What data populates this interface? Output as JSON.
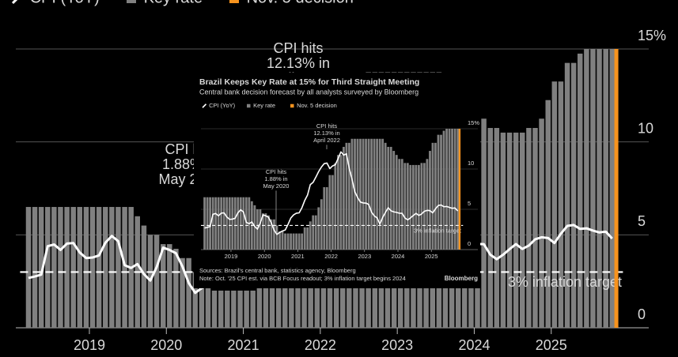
{
  "chart_data": {
    "type": "bar-line",
    "title": "Brazil Keeps Key Rate at 15% for Third Straight Meeting",
    "subtitle": "Central bank decision forecast by all analysts surveyed by Bloomberg",
    "x": [
      2018.167,
      2018.25,
      2018.333,
      2018.417,
      2018.5,
      2018.583,
      2018.667,
      2018.75,
      2018.833,
      2018.917,
      2019,
      2019.083,
      2019.167,
      2019.25,
      2019.333,
      2019.417,
      2019.5,
      2019.583,
      2019.667,
      2019.75,
      2019.833,
      2019.917,
      2020,
      2020.083,
      2020.167,
      2020.25,
      2020.333,
      2020.417,
      2020.5,
      2020.583,
      2020.667,
      2020.75,
      2020.833,
      2020.917,
      2021,
      2021.083,
      2021.167,
      2021.25,
      2021.333,
      2021.417,
      2021.5,
      2021.583,
      2021.667,
      2021.75,
      2021.833,
      2021.917,
      2022,
      2022.083,
      2022.167,
      2022.25,
      2022.333,
      2022.417,
      2022.5,
      2022.583,
      2022.667,
      2022.75,
      2022.833,
      2022.917,
      2023,
      2023.083,
      2023.167,
      2023.25,
      2023.333,
      2023.417,
      2023.5,
      2023.583,
      2023.667,
      2023.75,
      2023.833,
      2023.917,
      2024,
      2024.083,
      2024.167,
      2024.25,
      2024.333,
      2024.417,
      2024.5,
      2024.583,
      2024.667,
      2024.75,
      2024.833,
      2024.917,
      2025,
      2025.083,
      2025.167,
      2025.25,
      2025.333,
      2025.417,
      2025.5,
      2025.583,
      2025.667,
      2025.75
    ],
    "series": [
      {
        "name": "CPI (YoY)",
        "type": "line",
        "color": "#ffffff",
        "values": [
          2.68,
          2.76,
          2.86,
          4.39,
          4.48,
          4.19,
          4.53,
          4.56,
          4.05,
          3.75,
          3.78,
          3.89,
          4.58,
          4.94,
          4.66,
          3.37,
          3.22,
          3.43,
          2.89,
          2.54,
          3.27,
          4.31,
          4.19,
          4.01,
          3.3,
          2.4,
          1.88,
          2.13,
          2.31,
          2.44,
          3.14,
          3.92,
          4.31,
          4.52,
          4.56,
          5.2,
          6.1,
          6.76,
          8.06,
          8.35,
          8.99,
          9.68,
          10.25,
          10.67,
          10.74,
          10.06,
          10.38,
          10.54,
          11.3,
          12.13,
          11.73,
          11.89,
          10.07,
          8.73,
          7.17,
          6.47,
          5.9,
          5.79,
          5.77,
          5.6,
          4.65,
          4.18,
          3.94,
          3.16,
          3.99,
          4.61,
          5.19,
          4.82,
          4.68,
          4.62,
          4.51,
          4.5,
          3.93,
          3.69,
          3.93,
          4.23,
          4.5,
          4.24,
          4.42,
          4.76,
          4.87,
          4.83,
          4.56,
          5.06,
          5.48,
          5.53,
          5.32,
          5.35,
          5.23,
          5.13,
          5.17,
          4.8
        ]
      },
      {
        "name": "Key rate",
        "type": "bar",
        "color": "#808080",
        "values": [
          6.5,
          6.5,
          6.5,
          6.5,
          6.5,
          6.5,
          6.5,
          6.5,
          6.5,
          6.5,
          6.5,
          6.5,
          6.5,
          6.5,
          6.5,
          6.5,
          6.5,
          6,
          5.5,
          5,
          5,
          4.5,
          4.5,
          4.25,
          3.75,
          3.75,
          3,
          2.25,
          2.25,
          2,
          2,
          2,
          2,
          2,
          2,
          2,
          2.75,
          2.75,
          3.5,
          4.25,
          4.25,
          5.25,
          6.25,
          7.75,
          7.75,
          9.25,
          9.25,
          10.75,
          11.75,
          11.75,
          12.75,
          13.25,
          13.25,
          13.75,
          13.75,
          13.75,
          13.75,
          13.75,
          13.75,
          13.75,
          13.75,
          13.75,
          13.75,
          13.75,
          13.75,
          13.25,
          12.75,
          12.75,
          12.25,
          11.75,
          11.25,
          11.25,
          10.75,
          10.75,
          10.5,
          10.5,
          10.5,
          10.5,
          10.75,
          10.75,
          11.25,
          12.25,
          13.25,
          13.25,
          14.25,
          14.25,
          14.75,
          15,
          15,
          15,
          15,
          15
        ]
      },
      {
        "name": "Nov. 5 decision",
        "type": "vline",
        "color": "#f7931e",
        "x": 2025.846
      }
    ],
    "xlim": [
      2018.1,
      2025.95
    ],
    "xticks": [
      2019,
      2020,
      2021,
      2022,
      2023,
      2024,
      2025
    ],
    "ylim": [
      0,
      15
    ],
    "yticks": [
      0,
      5,
      10,
      {
        "value": 15,
        "label": "15%"
      }
    ],
    "target": {
      "value": 3,
      "label": "3% inflation target"
    },
    "annotations": [
      {
        "lines": [
          "CPI hits",
          "12.13% in",
          "April 2022"
        ]
      },
      {
        "lines": [
          "CPI hits",
          "1.88% in",
          "May 2020"
        ]
      }
    ],
    "source": "Sources: Brazil's central bank, statistics agency, Bloomberg",
    "note": "Note: Oct. '25 CPI est. via BCB Focus readout; 3% inflation target begins 2024",
    "credit": "Bloomberg"
  }
}
